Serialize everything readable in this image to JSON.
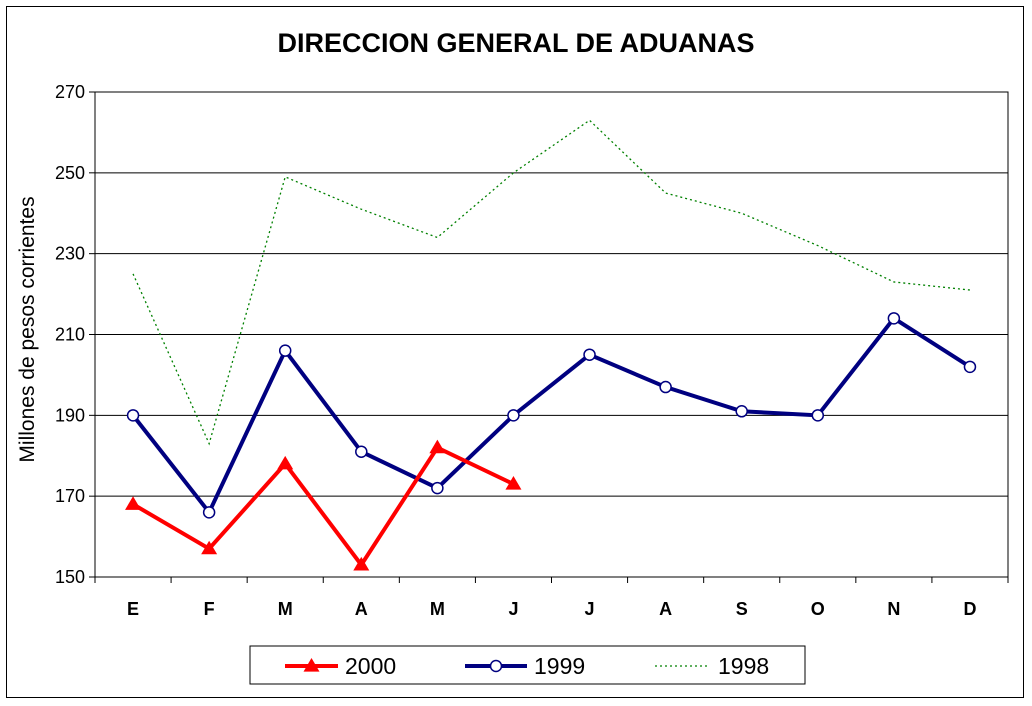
{
  "chart_data": {
    "type": "line",
    "title": "DIRECCION GENERAL DE ADUANAS",
    "xlabel": "",
    "ylabel": "Millones de pesos corrientes",
    "categories": [
      "E",
      "F",
      "M",
      "A",
      "M",
      "J",
      "J",
      "A",
      "S",
      "O",
      "N",
      "D"
    ],
    "ylim": [
      150,
      270
    ],
    "yticks": [
      "150",
      "170",
      "190",
      "210",
      "230",
      "250",
      "270"
    ],
    "grid": true,
    "legend_position": "bottom",
    "series": [
      {
        "name": "2000",
        "color": "#ff0000",
        "marker": "triangle",
        "style": "solid-thick",
        "values": [
          168,
          157,
          178,
          153,
          182,
          173,
          null,
          null,
          null,
          null,
          null,
          null
        ]
      },
      {
        "name": "1999",
        "color": "#000080",
        "marker": "circle",
        "style": "solid-thick",
        "values": [
          190,
          166,
          206,
          181,
          172,
          190,
          205,
          197,
          191,
          190,
          214,
          202
        ]
      },
      {
        "name": "1998",
        "color": "#008000",
        "marker": "none",
        "style": "dotted",
        "values": [
          225,
          183,
          249,
          241,
          234,
          250,
          263,
          245,
          240,
          232,
          223,
          221
        ]
      }
    ]
  }
}
